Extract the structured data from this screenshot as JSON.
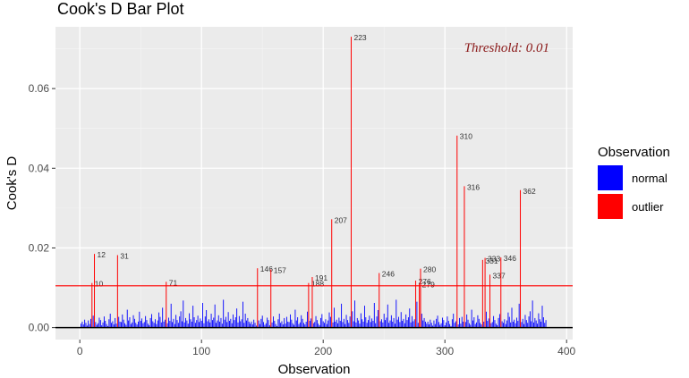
{
  "chart_data": {
    "type": "bar",
    "title": "Cook's D Bar Plot",
    "xlabel": "Observation",
    "ylabel": "Cook's D",
    "xlim": [
      -20,
      405
    ],
    "ylim": [
      -0.003,
      0.0755
    ],
    "x_ticks": [
      0,
      100,
      200,
      300,
      400
    ],
    "y_ticks": [
      0.0,
      0.02,
      0.04,
      0.06
    ],
    "y_tick_labels": [
      "0.00",
      "0.02",
      "0.04",
      "0.06"
    ],
    "grid": true,
    "threshold": 0.0105,
    "threshold_label": "Threshold: 0.01",
    "legend": {
      "title": "Observation",
      "position": "right",
      "entries": [
        {
          "label": "normal",
          "color": "#0000FF"
        },
        {
          "label": "outlier",
          "color": "#FF0000"
        }
      ]
    },
    "outliers": [
      {
        "x": 10,
        "value": 0.0112,
        "label": "10"
      },
      {
        "x": 12,
        "value": 0.0185,
        "label": "12"
      },
      {
        "x": 31,
        "value": 0.0182,
        "label": "31"
      },
      {
        "x": 71,
        "value": 0.0115,
        "label": "71"
      },
      {
        "x": 146,
        "value": 0.0149,
        "label": "146"
      },
      {
        "x": 157,
        "value": 0.0146,
        "label": "157"
      },
      {
        "x": 188,
        "value": 0.0112,
        "label": "188"
      },
      {
        "x": 191,
        "value": 0.0127,
        "label": "191"
      },
      {
        "x": 207,
        "value": 0.0272,
        "label": "207"
      },
      {
        "x": 223,
        "value": 0.073,
        "label": "223"
      },
      {
        "x": 246,
        "value": 0.0137,
        "label": "246"
      },
      {
        "x": 276,
        "value": 0.0118,
        "label": "276"
      },
      {
        "x": 279,
        "value": 0.011,
        "label": "279"
      },
      {
        "x": 280,
        "value": 0.0148,
        "label": "280"
      },
      {
        "x": 310,
        "value": 0.0482,
        "label": "310"
      },
      {
        "x": 316,
        "value": 0.0355,
        "label": "316"
      },
      {
        "x": 331,
        "value": 0.017,
        "label": "331"
      },
      {
        "x": 333,
        "value": 0.0175,
        "label": "333"
      },
      {
        "x": 337,
        "value": 0.0133,
        "label": "337"
      },
      {
        "x": 346,
        "value": 0.0176,
        "label": "346"
      },
      {
        "x": 362,
        "value": 0.0345,
        "label": "362"
      }
    ],
    "normal_values": [
      0.001,
      0.0015,
      0.0008,
      0.002,
      0.0012,
      0.0005,
      0.0018,
      0.0009,
      0.0022,
      0.003,
      0.0014,
      0.0007,
      0.0011,
      0.0025,
      0.0019,
      0.0006,
      0.0013,
      0.0028,
      0.0017,
      0.0009,
      0.0004,
      0.0021,
      0.0035,
      0.0012,
      0.0016,
      0.0008,
      0.0024,
      0.001,
      0.0027,
      0.0015,
      0.0014,
      0.0033,
      0.002,
      0.0011,
      0.0007,
      0.0045,
      0.0018,
      0.0026,
      0.0009,
      0.0013,
      0.0031,
      0.0022,
      0.0012,
      0.0008,
      0.0015,
      0.004,
      0.0017,
      0.0023,
      0.0011,
      0.0014,
      0.0029,
      0.0019,
      0.001,
      0.0006,
      0.0024,
      0.0034,
      0.0016,
      0.0012,
      0.0021,
      0.0009,
      0.0018,
      0.0038,
      0.0027,
      0.0013,
      0.005,
      0.0015,
      0.002,
      0.0011,
      0.0025,
      0.0017,
      0.006,
      0.0014,
      0.0022,
      0.0009,
      0.0032,
      0.0019,
      0.0012,
      0.0028,
      0.0041,
      0.0016,
      0.0068,
      0.0013,
      0.0024,
      0.0018,
      0.001,
      0.0036,
      0.0021,
      0.0015,
      0.0055,
      0.0026,
      0.0012,
      0.0019,
      0.003,
      0.0014,
      0.0023,
      0.0017,
      0.0062,
      0.0011,
      0.0028,
      0.0044,
      0.0016,
      0.0021,
      0.0013,
      0.0035,
      0.0019,
      0.0025,
      0.0058,
      0.0012,
      0.0018,
      0.0031,
      0.0015,
      0.0024,
      0.001,
      0.007,
      0.002,
      0.0027,
      0.0014,
      0.0039,
      0.0017,
      0.0022,
      0.0011,
      0.0033,
      0.0019,
      0.0026,
      0.0048,
      0.0013,
      0.0029,
      0.0016,
      0.0021,
      0.0065,
      0.0012,
      0.0035,
      0.0018,
      0.0024,
      0.0015
    ]
  }
}
